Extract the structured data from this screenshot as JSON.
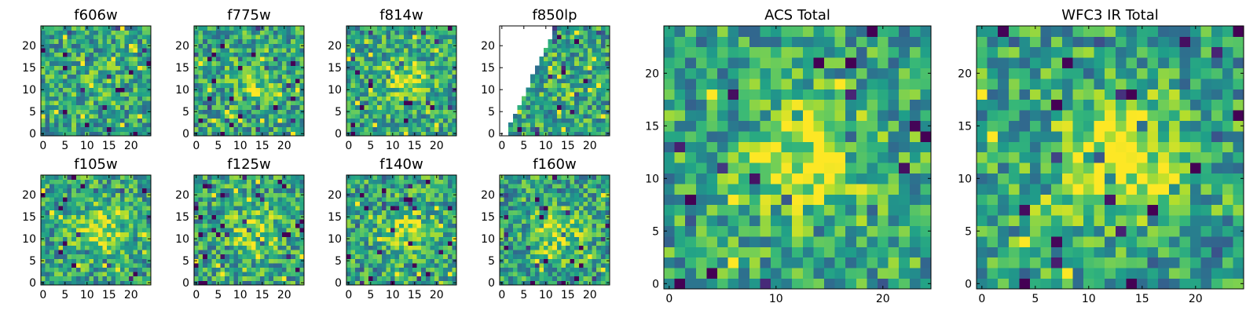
{
  "chart_data": [
    {
      "type": "heatmap",
      "title": "f606w",
      "x_ticks": [
        0,
        5,
        10,
        15,
        20
      ],
      "y_ticks": [
        0,
        5,
        10,
        15,
        20
      ],
      "xlim": [
        0,
        25
      ],
      "ylim": [
        0,
        25
      ],
      "colormap": "viridis",
      "grid": false,
      "center_brightness": 0.1,
      "seed": 11
    },
    {
      "type": "heatmap",
      "title": "f775w",
      "x_ticks": [
        0,
        5,
        10,
        15,
        20
      ],
      "y_ticks": [
        0,
        5,
        10,
        15,
        20
      ],
      "xlim": [
        0,
        25
      ],
      "ylim": [
        0,
        25
      ],
      "colormap": "viridis",
      "grid": false,
      "center_brightness": 0.18,
      "seed": 23
    },
    {
      "type": "heatmap",
      "title": "f814w",
      "x_ticks": [
        0,
        5,
        10,
        15,
        20
      ],
      "y_ticks": [
        0,
        5,
        10,
        15,
        20
      ],
      "xlim": [
        0,
        25
      ],
      "ylim": [
        0,
        25
      ],
      "colormap": "viridis",
      "grid": false,
      "center_brightness": 0.25,
      "seed": 37
    },
    {
      "type": "heatmap",
      "title": "f850lp",
      "x_ticks": [
        0,
        5,
        10,
        15,
        20
      ],
      "y_ticks": [
        0,
        5,
        10,
        15,
        20
      ],
      "xlim": [
        0,
        25
      ],
      "ylim": [
        0,
        25
      ],
      "colormap": "viridis",
      "grid": false,
      "center_brightness": 0.05,
      "seed": 41,
      "masked_region": "upper-left triangle (no data)"
    },
    {
      "type": "heatmap",
      "title": "f105w",
      "x_ticks": [
        0,
        5,
        10,
        15,
        20
      ],
      "y_ticks": [
        0,
        5,
        10,
        15,
        20
      ],
      "xlim": [
        0,
        25
      ],
      "ylim": [
        0,
        25
      ],
      "colormap": "viridis",
      "grid": false,
      "center_brightness": 0.32,
      "seed": 53
    },
    {
      "type": "heatmap",
      "title": "f125w",
      "x_ticks": [
        0,
        5,
        10,
        15,
        20
      ],
      "y_ticks": [
        0,
        5,
        10,
        15,
        20
      ],
      "xlim": [
        0,
        25
      ],
      "ylim": [
        0,
        25
      ],
      "colormap": "viridis",
      "grid": false,
      "center_brightness": 0.3,
      "seed": 67
    },
    {
      "type": "heatmap",
      "title": "f140w",
      "x_ticks": [
        0,
        5,
        10,
        15,
        20
      ],
      "y_ticks": [
        0,
        5,
        10,
        15,
        20
      ],
      "xlim": [
        0,
        25
      ],
      "ylim": [
        0,
        25
      ],
      "colormap": "viridis",
      "grid": false,
      "center_brightness": 0.28,
      "seed": 71
    },
    {
      "type": "heatmap",
      "title": "f160w",
      "x_ticks": [
        0,
        5,
        10,
        15,
        20
      ],
      "y_ticks": [
        0,
        5,
        10,
        15,
        20
      ],
      "xlim": [
        0,
        25
      ],
      "ylim": [
        0,
        25
      ],
      "colormap": "viridis",
      "grid": false,
      "center_brightness": 0.3,
      "seed": 83
    },
    {
      "type": "heatmap",
      "title": "ACS Total",
      "x_ticks": [
        0,
        10,
        20
      ],
      "y_ticks": [
        0,
        5,
        10,
        15,
        20
      ],
      "xlim": [
        0,
        25
      ],
      "ylim": [
        0,
        25
      ],
      "colormap": "viridis",
      "grid": false,
      "center_brightness": 0.35,
      "seed": 97
    },
    {
      "type": "heatmap",
      "title": "WFC3 IR Total",
      "x_ticks": [
        0,
        5,
        10,
        15,
        20
      ],
      "y_ticks": [
        0,
        5,
        10,
        15,
        20
      ],
      "xlim": [
        0,
        25
      ],
      "ylim": [
        0,
        25
      ],
      "colormap": "viridis",
      "grid": false,
      "center_brightness": 0.45,
      "seed": 101
    }
  ],
  "colors": {
    "axes": "#000000",
    "background": "#ffffff",
    "masked": "#ffffff"
  }
}
